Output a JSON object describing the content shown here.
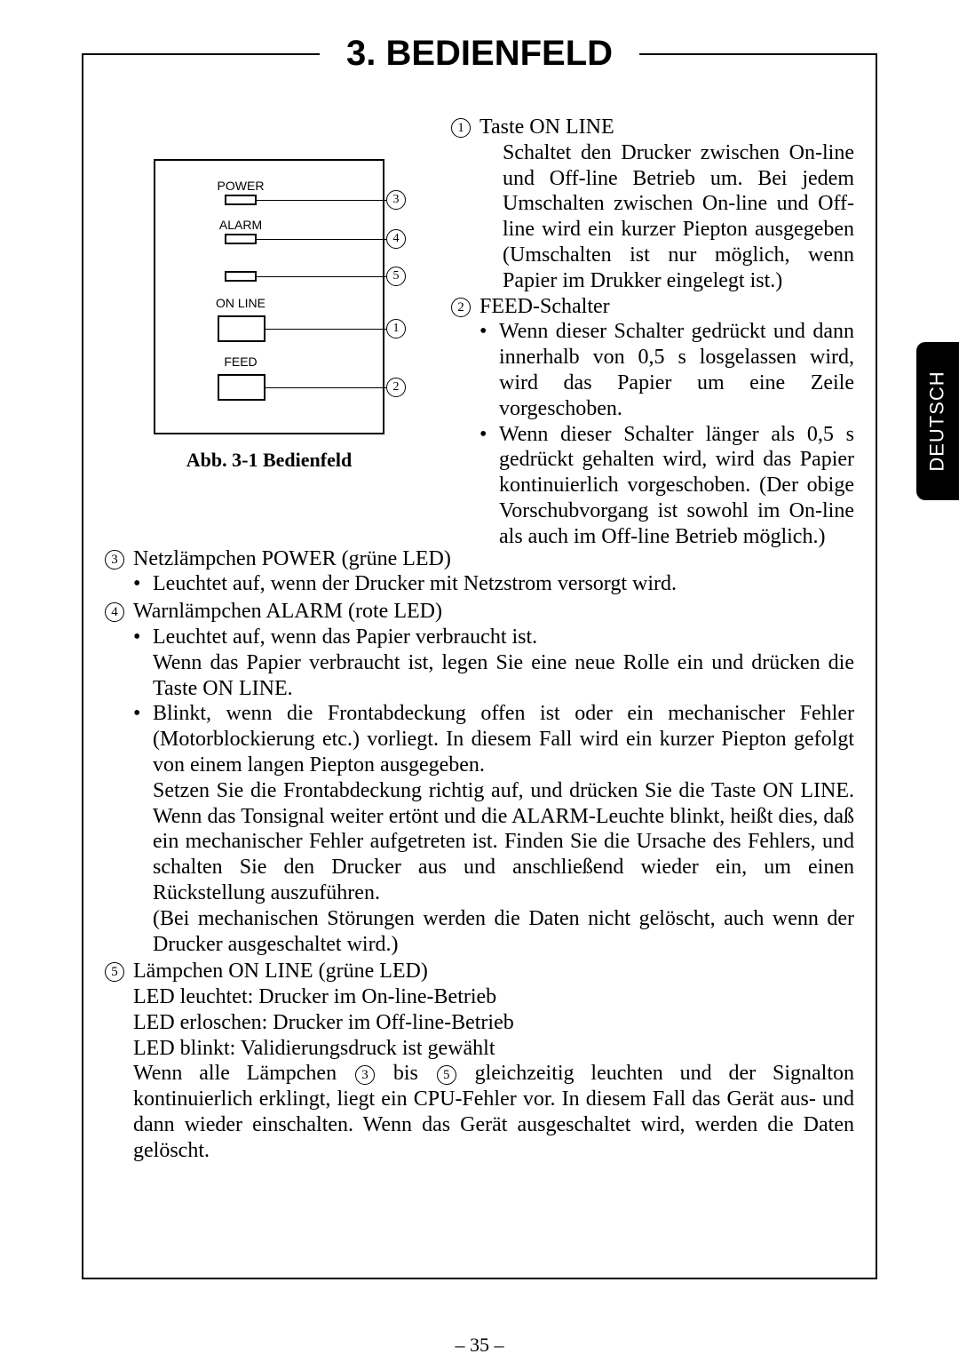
{
  "title": "3. BEDIENFELD",
  "side_tab": "DEUTSCH",
  "page_number": "– 35 –",
  "figure": {
    "caption": "Abb. 3-1 Bedienfeld",
    "labels": {
      "power": "POWER",
      "alarm": "ALARM",
      "online": "ON LINE",
      "feed": "FEED"
    },
    "badges": {
      "n1": "1",
      "n2": "2",
      "n3": "3",
      "n4": "4",
      "n5": "5"
    }
  },
  "items": {
    "i1": {
      "num": "1",
      "title": "Taste ON LINE",
      "body": "Schaltet den Drucker zwischen On-line und Off-line Betrieb um. Bei jedem Umschalten zwischen On-line und Off-line wird ein kurzer Piepton ausgegeben (Umschalten ist nur möglich, wenn Papier im Drukker eingelegt ist.)"
    },
    "i2": {
      "num": "2",
      "title": "FEED-Schalter",
      "b1": "Wenn dieser Schalter gedrückt und dann innerhalb von 0,5 s losgelassen wird, wird das Papier um eine Zeile vorgeschoben.",
      "b2": "Wenn dieser Schalter länger als 0,5 s gedrückt gehalten wird, wird das Papier kontinuierlich vorgeschoben. (Der obige Vorschubvorgang ist sowohl im On-line als auch im Off-line Betrieb möglich.)"
    },
    "i3": {
      "num": "3",
      "title": "Netzlämpchen POWER (grüne LED)",
      "b1": "Leuchtet auf, wenn der Drucker mit Netzstrom versorgt wird."
    },
    "i4": {
      "num": "4",
      "title": "Warnlämpchen ALARM (rote LED)",
      "b1": "Leuchtet auf, wenn das Papier verbraucht ist.",
      "b1b": "Wenn das Papier verbraucht ist, legen Sie eine neue Rolle ein und drücken die Taste ON LINE.",
      "b2": "Blinkt, wenn die Frontabdeckung offen ist oder ein mechanischer Fehler (Motorblockierung etc.) vorliegt. In diesem Fall wird ein kurzer Piepton gefolgt von einem langen Piepton ausgegeben.",
      "b2b": "Setzen Sie die Frontabdeckung richtig auf, und drücken Sie die Taste ON LINE. Wenn das Tonsignal weiter ertönt und die ALARM-Leuchte blinkt, heißt dies, daß ein mechanischer Fehler aufgetreten ist. Finden Sie die Ursache des Fehlers, und schalten Sie den Drucker aus und anschließend wieder ein, um einen Rückstellung auszuführen.",
      "b2c": "(Bei mechanischen Störungen werden die Daten nicht gelöscht, auch wenn der Drucker ausgeschaltet wird.)"
    },
    "i5": {
      "num": "5",
      "title": "Lämpchen ON LINE (grüne LED)",
      "l1": "LED leuchtet: Drucker im On-line-Betrieb",
      "l2": "LED erloschen: Drucker im Off-line-Betrieb",
      "l3": "LED blinkt: Validierungsdruck ist gewählt",
      "tail_a": "Wenn alle Lämpchen ",
      "tail_b": " bis ",
      "tail_c": " gleichzeitig leuchten und der Signalton kontinuierlich erklingt, liegt ein CPU-Fehler vor. In diesem Fall das Gerät aus- und dann wieder einschalten. Wenn das Gerät ausgeschaltet wird, werden die Daten gelöscht.",
      "c3": "3",
      "c5": "5"
    }
  }
}
